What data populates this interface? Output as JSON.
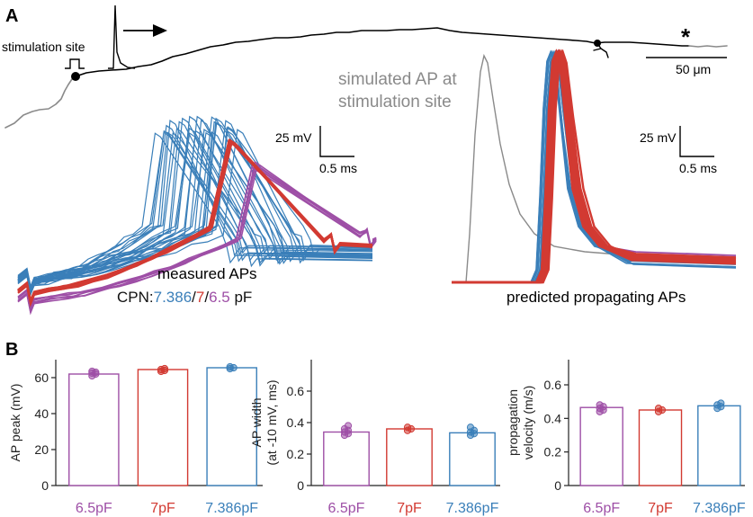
{
  "panel_a": {
    "label": "A",
    "stimulation_site": "stimulation site",
    "asterisk": "*",
    "scale_bar_um": "50 μm",
    "simulated_ap_line1": "simulated AP at",
    "simulated_ap_line2": "stimulation site",
    "measured_title": "measured APs",
    "cpn_prefix": "CPN:",
    "cpn_blue": "7.386",
    "cpn_sep1": "/",
    "cpn_red": "7",
    "cpn_sep2": "/",
    "cpn_purple": "6.5",
    "cpn_unit": " pF",
    "predicted_title": "predicted propagating APs",
    "scale_left": {
      "voltage": "25 mV",
      "time": "0.5 ms"
    },
    "scale_right": {
      "voltage": "25 mV",
      "time": "0.5 ms"
    }
  },
  "panel_b": {
    "label": "B"
  },
  "colors": {
    "blue": "#3a7fb9",
    "red": "#d23a32",
    "purple": "#9e4fa6",
    "gray": "#8a8a8a",
    "black": "#000000"
  },
  "chart_data": [
    {
      "type": "bar",
      "title": "",
      "ylabel": "AP peak (mV)",
      "categories": [
        "6.5pF",
        "7pF",
        "7.386pF"
      ],
      "category_colors": [
        "#9e4fa6",
        "#d23a32",
        "#3a7fb9"
      ],
      "values": [
        62,
        64.5,
        65.5
      ],
      "points": [
        [
          61,
          62,
          62.5,
          63,
          63.5
        ],
        [
          63.5,
          64,
          64.5,
          65
        ],
        [
          65,
          65.5,
          66
        ]
      ],
      "ylim": [
        0,
        70
      ],
      "yticks": [
        0,
        20,
        40,
        60
      ],
      "ytick_labels": [
        "0",
        "20",
        "40",
        "60"
      ]
    },
    {
      "type": "bar",
      "title": "",
      "ylabel": "AP width",
      "ylabel2": "(at -10 mV, ms)",
      "categories": [
        "6.5pF",
        "7pF",
        "7.386pF"
      ],
      "category_colors": [
        "#9e4fa6",
        "#d23a32",
        "#3a7fb9"
      ],
      "values": [
        0.34,
        0.36,
        0.335
      ],
      "points": [
        [
          0.32,
          0.33,
          0.34,
          0.35,
          0.36,
          0.38
        ],
        [
          0.35,
          0.36,
          0.37
        ],
        [
          0.32,
          0.33,
          0.34,
          0.35,
          0.37
        ]
      ],
      "ylim": [
        0,
        0.8
      ],
      "yticks": [
        0,
        0.2,
        0.4,
        0.6
      ],
      "ytick_labels": [
        "0",
        "0.2",
        "0.4",
        "0.6"
      ]
    },
    {
      "type": "bar",
      "title": "",
      "ylabel": "propagation",
      "ylabel2": "velocity (m/s)",
      "categories": [
        "6.5pF",
        "7pF",
        "7.386pF"
      ],
      "category_colors": [
        "#9e4fa6",
        "#d23a32",
        "#3a7fb9"
      ],
      "values": [
        0.465,
        0.45,
        0.475
      ],
      "points": [
        [
          0.44,
          0.45,
          0.46,
          0.47,
          0.48
        ],
        [
          0.44,
          0.45,
          0.46
        ],
        [
          0.46,
          0.47,
          0.48,
          0.49
        ]
      ],
      "ylim": [
        0,
        0.75
      ],
      "yticks": [
        0,
        0.2,
        0.4,
        0.6
      ],
      "ytick_labels": [
        "0",
        "0.2",
        "0.4",
        "0.6"
      ]
    }
  ]
}
